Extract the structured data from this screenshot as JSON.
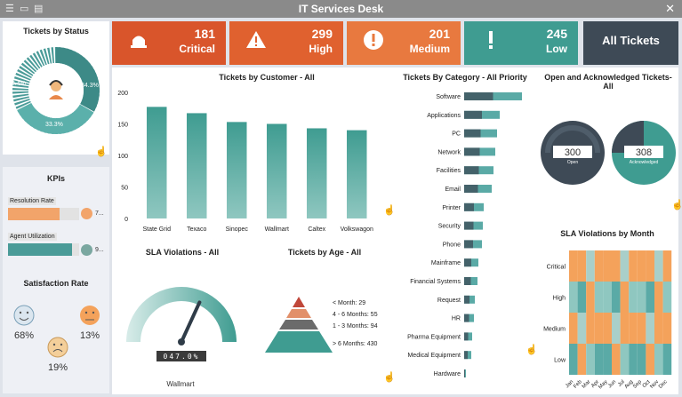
{
  "window": {
    "title": "IT Services Desk"
  },
  "status_panel": {
    "title": "Tickets by Status",
    "segments": [
      {
        "label": "32.4%",
        "value": 32.4,
        "color": "#4a9b98"
      },
      {
        "label": "34.3%",
        "value": 34.3,
        "color": "#5aaaa6"
      },
      {
        "label": "33.3%",
        "value": 33.3,
        "color": "#3f8f8c"
      }
    ]
  },
  "tiles": [
    {
      "count": "181",
      "label": "Critical",
      "color": "#d9552b",
      "icon": "alarm-icon"
    },
    {
      "count": "299",
      "label": "High",
      "color": "#e0612f",
      "icon": "warning-icon"
    },
    {
      "count": "201",
      "label": "Medium",
      "color": "#e8793f",
      "icon": "exclamation-icon"
    },
    {
      "count": "245",
      "label": "Low",
      "color": "#3f9c91",
      "icon": "bang-icon"
    }
  ],
  "all_tickets": {
    "label": "All Tickets",
    "color": "#3e4a56"
  },
  "kpis": {
    "title": "KPIs",
    "items": [
      {
        "label": "Resolution Rate",
        "value_text": "7...",
        "fraction": 0.72,
        "dot": "#f2a46a"
      },
      {
        "label": "Agent Utilization",
        "value_text": "9...",
        "fraction": 0.9,
        "dot": "#7aa7a0"
      }
    ]
  },
  "satisfaction": {
    "title": "Satisfaction Rate",
    "items": [
      {
        "pct": "68%",
        "face": "smile-icon"
      },
      {
        "pct": "13%",
        "face": "neutral-icon"
      },
      {
        "pct": "19%",
        "face": "sad-icon"
      }
    ]
  },
  "chart_data": [
    {
      "type": "bar",
      "title": "Tickets by Customer - All",
      "categories": [
        "State Grid",
        "Texaco",
        "Sinopec",
        "Wallmart",
        "Caltex",
        "Volkswagon"
      ],
      "values": [
        177,
        167,
        153,
        150,
        143,
        140
      ],
      "yticks": [
        "0",
        "50",
        "100",
        "150",
        "200"
      ],
      "ylim": [
        0,
        200
      ]
    },
    {
      "type": "bar",
      "title": "Tickets By Category - All Priority",
      "categories": [
        "Software",
        "Applications",
        "PC",
        "Network",
        "Facilities",
        "Email",
        "Printer",
        "Security",
        "Phone",
        "Mainframe",
        "Financial Systems",
        "Request",
        "HR",
        "Pharma Equipment",
        "Medical Equipment",
        "Hardware"
      ],
      "values": [
        65,
        40,
        37,
        35,
        33,
        31,
        22,
        21,
        20,
        16,
        15,
        12,
        11,
        9,
        8,
        2
      ]
    },
    {
      "type": "table",
      "title": "Tickets by Age - All",
      "labels": [
        "< Month: 29",
        "4 - 6 Months: 55",
        "1 - 3 Months: 94",
        "> 6 Months: 430"
      ]
    },
    {
      "type": "heatmap",
      "title": "SLA Violations by Month",
      "rows": [
        "Critical",
        "High",
        "Medium",
        "Low"
      ],
      "columns": [
        "Jan",
        "Feb",
        "Mar",
        "Apr",
        "May",
        "Jun",
        "Jul",
        "Aug",
        "Sep",
        "Oct",
        "Nov",
        "Dec"
      ]
    }
  ],
  "sla_gauge": {
    "title": "SLA Violations - All",
    "readout": "047.0%",
    "customer": "Wallmart",
    "fraction": 0.47
  },
  "open_ack": {
    "title": "Open and Acknowledged Tickets- All",
    "open_value": "300",
    "open_label": "Open",
    "ack_value": "308",
    "ack_label": "Acknowledged"
  }
}
